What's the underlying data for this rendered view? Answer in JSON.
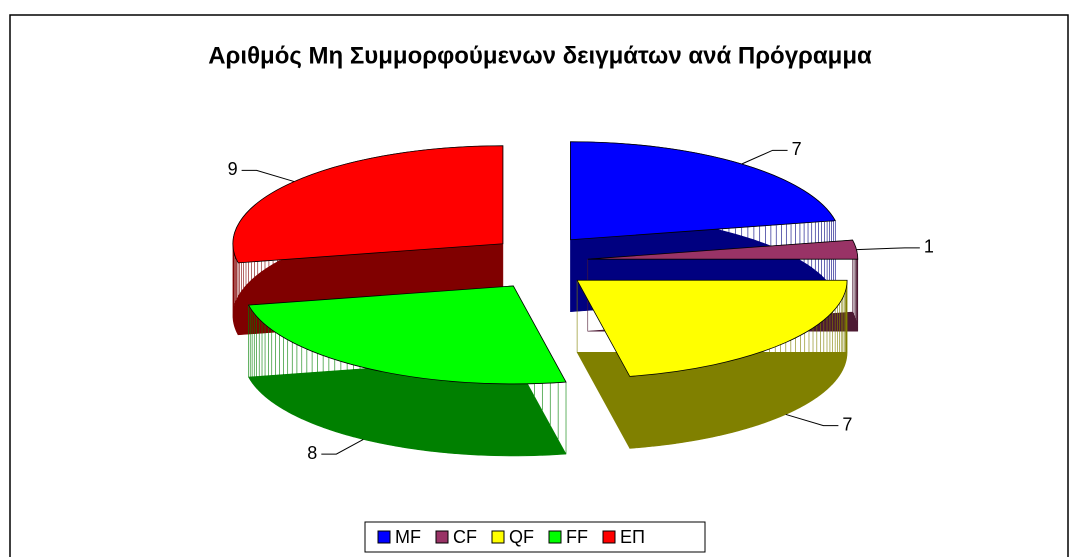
{
  "chart_data": {
    "type": "pie",
    "title": "Αριθμός Μη Συμμορφούμενων δειγμάτων ανά Πρόγραμμα",
    "categories": [
      "MF",
      "CF",
      "QF",
      "FF",
      "ΕΠ"
    ],
    "values": [
      7,
      1,
      7,
      8,
      9
    ],
    "colors": [
      "#0000ff",
      "#993366",
      "#ffff00",
      "#00ff00",
      "#ff0000"
    ],
    "legend": "bottom"
  }
}
